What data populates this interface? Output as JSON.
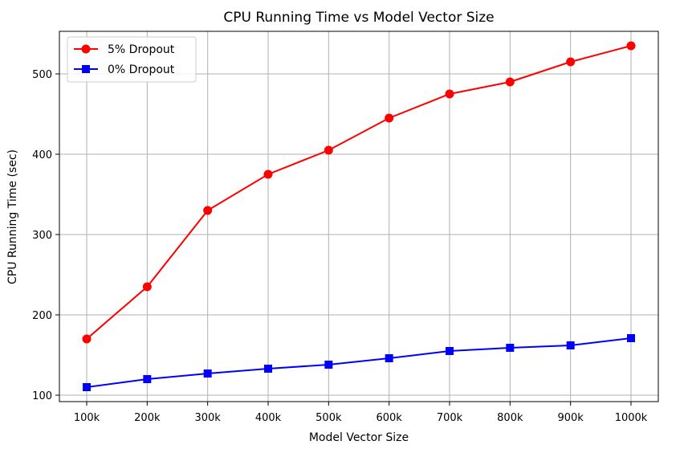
{
  "chart_data": {
    "type": "line",
    "title": "CPU Running Time vs Model Vector Size",
    "xlabel": "Model Vector Size",
    "ylabel": "CPU Running Time (sec)",
    "categories": [
      "100k",
      "200k",
      "300k",
      "400k",
      "500k",
      "600k",
      "700k",
      "800k",
      "900k",
      "1000k"
    ],
    "ylim": [
      92,
      553
    ],
    "yticks": [
      100,
      200,
      300,
      400,
      500
    ],
    "grid": true,
    "legend_position": "top-left",
    "series": [
      {
        "name": "5% Dropout",
        "color": "#ff0000",
        "marker": "circle",
        "values": [
          170,
          235,
          330,
          375,
          405,
          445,
          475,
          490,
          515,
          535
        ]
      },
      {
        "name": "0% Dropout",
        "color": "#0000ff",
        "marker": "square",
        "values": [
          110,
          120,
          127,
          133,
          138,
          146,
          155,
          159,
          162,
          171
        ]
      }
    ]
  }
}
